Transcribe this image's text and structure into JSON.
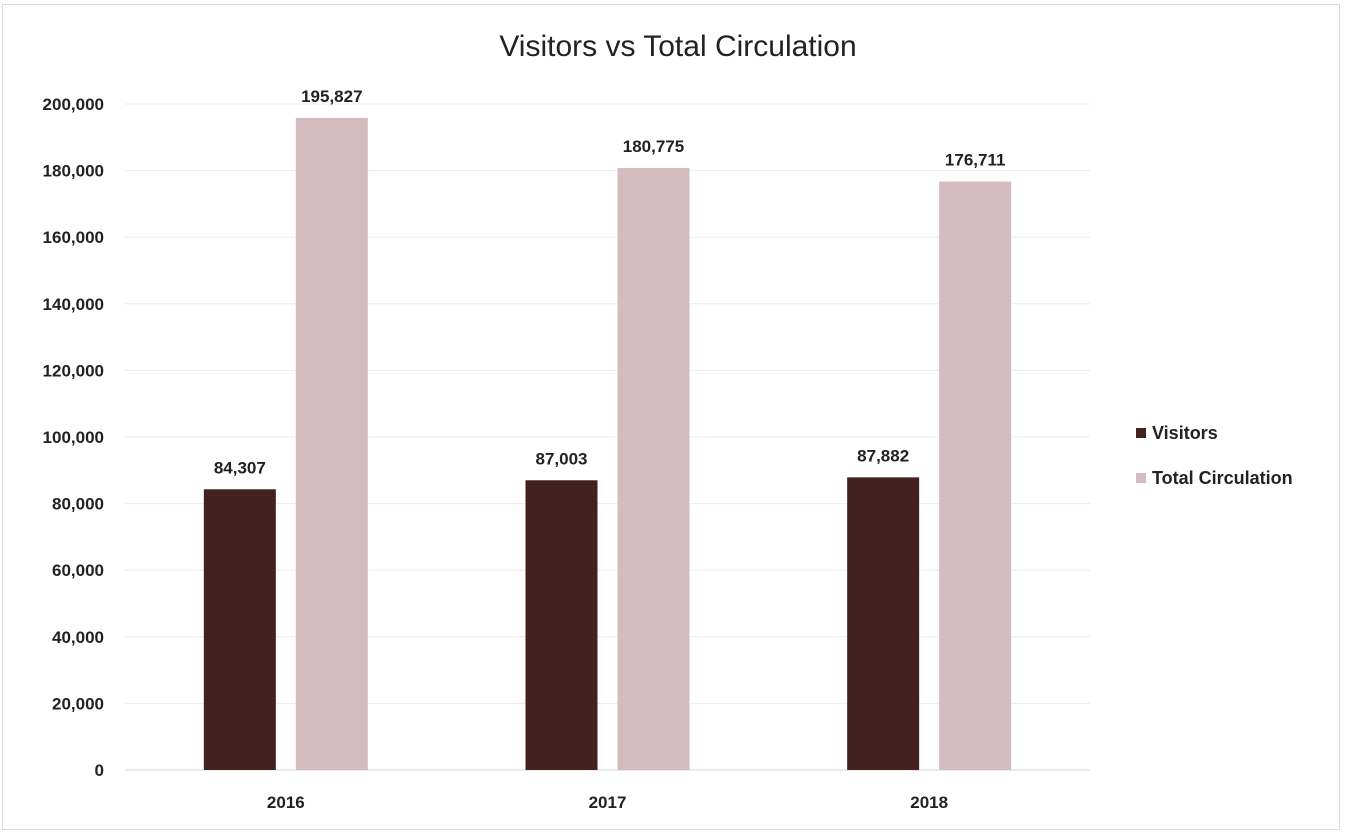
{
  "chart_data": {
    "type": "bar",
    "title": "Visitors vs Total Circulation",
    "categories": [
      "2016",
      "2017",
      "2018"
    ],
    "series": [
      {
        "name": "Visitors",
        "values": [
          84307,
          87003,
          87882
        ],
        "color": "#43211f",
        "labels": [
          "84,307",
          "87,003",
          "87,882"
        ]
      },
      {
        "name": "Total Circulation",
        "values": [
          195827,
          180775,
          176711
        ],
        "color": "#d4bbc0",
        "labels": [
          "195,827",
          "180,775",
          "176,711"
        ]
      }
    ],
    "ylim": [
      0,
      200000
    ],
    "yticks": [
      0,
      20000,
      40000,
      60000,
      80000,
      100000,
      120000,
      140000,
      160000,
      180000,
      200000
    ],
    "ytick_labels": [
      "0",
      "20,000",
      "40,000",
      "60,000",
      "80,000",
      "100,000",
      "120,000",
      "140,000",
      "160,000",
      "180,000",
      "200,000"
    ],
    "grid": true,
    "legend_position": "right"
  }
}
